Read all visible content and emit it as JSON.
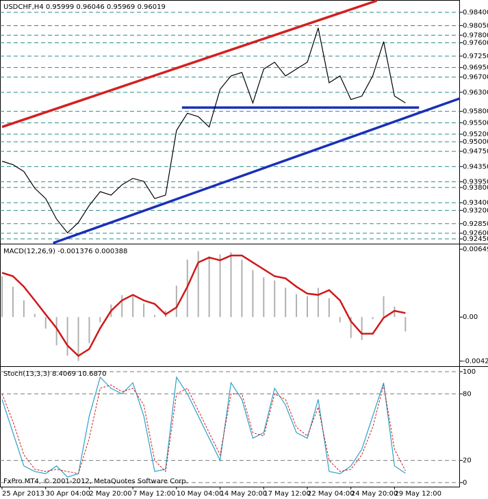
{
  "chart_data": [
    {
      "type": "line",
      "title": "USDCHF,H4  0.95999 0.96046 0.95969 0.96019",
      "x": [
        0,
        4,
        8,
        12,
        16,
        20,
        24,
        28,
        32,
        36,
        40,
        44,
        48,
        52,
        56,
        60,
        64,
        68,
        72,
        76,
        80,
        84,
        88,
        92,
        96,
        100,
        104,
        108,
        112,
        116,
        120,
        124,
        128,
        132,
        136,
        140,
        144,
        148
      ],
      "series": [
        {
          "color": "#000000",
          "values": [
            0.9449,
            0.944,
            0.9422,
            0.9378,
            0.9351,
            0.9297,
            0.9261,
            0.9288,
            0.9333,
            0.9369,
            0.936,
            0.9387,
            0.9404,
            0.9396,
            0.9351,
            0.936,
            0.953,
            0.9575,
            0.9566,
            0.9539,
            0.9638,
            0.9673,
            0.9682,
            0.9602,
            0.9691,
            0.9709,
            0.9673,
            0.9691,
            0.9709,
            0.9799,
            0.9655,
            0.9673,
            0.9611,
            0.962,
            0.9673,
            0.9763,
            0.962,
            0.9602
          ]
        }
      ],
      "trendlines": [
        {
          "color": "#d42020",
          "x": [
            0,
            137.5
          ],
          "y": [
            0.9539,
            0.98705
          ]
        },
        {
          "color": "#1a2fb8",
          "x": [
            18.75,
            168
          ],
          "y": [
            0.92343,
            0.9614
          ]
        },
        {
          "color": "#1a2fb8",
          "x": [
            66,
            153
          ],
          "y": [
            0.959,
            0.959
          ]
        }
      ],
      "xlim": [
        0,
        168
      ],
      "ylim": [
        0.92343,
        0.98705
      ],
      "yticks": [
        {
          "value": 0.984,
          "label": "0.98400"
        },
        {
          "value": 0.9805,
          "label": "0.98050"
        },
        {
          "value": 0.978,
          "label": "0.97800"
        },
        {
          "value": 0.976,
          "label": "0.97600"
        },
        {
          "value": 0.9725,
          "label": "0.97250"
        },
        {
          "value": 0.9695,
          "label": "0.96950"
        },
        {
          "value": 0.967,
          "label": "0.96700"
        },
        {
          "value": 0.963,
          "label": "0.96300"
        },
        {
          "value": 0.958,
          "label": "0.95800"
        },
        {
          "value": 0.955,
          "label": "0.95500"
        },
        {
          "value": 0.952,
          "label": "0.95200"
        },
        {
          "value": 0.95,
          "label": "0.95000"
        },
        {
          "value": 0.9475,
          "label": "0.94750"
        },
        {
          "value": 0.9435,
          "label": "0.94350"
        },
        {
          "value": 0.9395,
          "label": "0.93950"
        },
        {
          "value": 0.938,
          "label": "0.93800"
        },
        {
          "value": 0.934,
          "label": "0.93400"
        },
        {
          "value": 0.932,
          "label": "0.93200"
        },
        {
          "value": 0.9285,
          "label": "0.92850"
        },
        {
          "value": 0.926,
          "label": "0.92600"
        },
        {
          "value": 0.9245,
          "label": "0.92450"
        }
      ],
      "grid": true,
      "grid_color": "#2a8a8a"
    },
    {
      "type": "line",
      "title": "MACD(12,26,9) -0.001376 0.000388",
      "x": [
        0,
        4,
        8,
        12,
        16,
        20,
        24,
        28,
        32,
        36,
        40,
        44,
        48,
        52,
        56,
        60,
        64,
        68,
        72,
        76,
        80,
        84,
        88,
        92,
        96,
        100,
        104,
        108,
        112,
        116,
        120,
        124,
        128,
        132,
        136,
        140,
        144,
        148
      ],
      "series": [
        {
          "type": "bar",
          "color": "#b0b0b0",
          "values": [
            0.0039,
            0.0029,
            0.0016,
            0.0003,
            -0.0011,
            -0.0027,
            -0.0037,
            -0.0042,
            -0.0025,
            -0.0005,
            0.0012,
            0.0021,
            0.002,
            0.0013,
            0.0002,
            0.0006,
            0.003,
            0.0055,
            0.0063,
            0.0058,
            0.006,
            0.0062,
            0.0055,
            0.0045,
            0.0038,
            0.0035,
            0.0028,
            0.0022,
            0.002,
            0.0028,
            0.0018,
            -0.0005,
            -0.002,
            -0.0022,
            -0.0002,
            0.002,
            0.001,
            -0.001376
          ]
        },
        {
          "color": "#d01818",
          "values": [
            0.00424,
            0.00391,
            0.00291,
            0.00159,
            0.00026,
            -0.00106,
            -0.00272,
            -0.00371,
            -0.00305,
            -0.00106,
            0.0006,
            0.00159,
            0.00212,
            0.00159,
            0.00126,
            0.00026,
            0.00093,
            0.00291,
            0.00523,
            0.0057,
            0.00543,
            0.00589,
            0.00589,
            0.00523,
            0.00457,
            0.00391,
            0.00371,
            0.00291,
            0.00225,
            0.00212,
            0.00258,
            0.00159,
            -0.0004,
            -0.00159,
            -0.00159,
            -7e-05,
            0.0006,
            0.000388
          ]
        }
      ],
      "xlim": [
        0,
        168
      ],
      "ylim": [
        -0.0047,
        0.00689
      ],
      "yticks": [
        0.006491,
        {
          "value": 0,
          "label": "0.00"
        },
        -0.004206
      ],
      "grid": false
    },
    {
      "type": "line",
      "title": "Stoch(13,3,3) 8.4069 10.6870",
      "annotation": "FxPro MT4, © 2001-2012, MetaQuotes Software Corp.",
      "x": [
        0,
        4,
        8,
        12,
        16,
        20,
        24,
        28,
        32,
        36,
        40,
        44,
        48,
        52,
        56,
        60,
        64,
        68,
        72,
        76,
        80,
        84,
        88,
        92,
        96,
        100,
        104,
        108,
        112,
        116,
        120,
        124,
        128,
        132,
        136,
        140,
        144,
        148
      ],
      "series": [
        {
          "color": "#2aa0c8",
          "values": [
            75,
            45,
            15,
            10,
            8,
            15,
            5,
            8,
            60,
            95,
            85,
            80,
            90,
            60,
            10,
            12,
            95,
            80,
            60,
            40,
            20,
            90,
            75,
            40,
            45,
            85,
            70,
            45,
            40,
            75,
            10,
            8,
            15,
            30,
            60,
            90,
            15,
            8.4069
          ]
        },
        {
          "color": "#d01818",
          "dash": true,
          "values": [
            80,
            55,
            25,
            12,
            10,
            12,
            10,
            8,
            40,
            85,
            88,
            82,
            85,
            70,
            20,
            10,
            80,
            85,
            65,
            45,
            25,
            80,
            80,
            45,
            42,
            80,
            75,
            50,
            42,
            68,
            20,
            10,
            12,
            25,
            50,
            88,
            30,
            10.687
          ]
        }
      ],
      "xlim": [
        0,
        168
      ],
      "ylim": [
        -3.7,
        103.7
      ],
      "yticks": [
        100,
        80,
        20,
        0
      ],
      "grid": true,
      "grid_color": "#7a7a7a",
      "xticks": [
        {
          "value": 0,
          "label": "25 Apr 2013"
        },
        {
          "value": 16,
          "label": "30 Apr 04:00"
        },
        {
          "value": 32,
          "label": "2 May 20:00"
        },
        {
          "value": 48,
          "label": "7 May 12:00"
        },
        {
          "value": 64,
          "label": "10 May 04:00"
        },
        {
          "value": 80,
          "label": "14 May 20:00"
        },
        {
          "value": 96,
          "label": "17 May 12:00"
        },
        {
          "value": 112,
          "label": "22 May 04:00"
        },
        {
          "value": 128,
          "label": "24 May 20:00"
        },
        {
          "value": 144,
          "label": "29 May 12:00"
        }
      ]
    }
  ]
}
